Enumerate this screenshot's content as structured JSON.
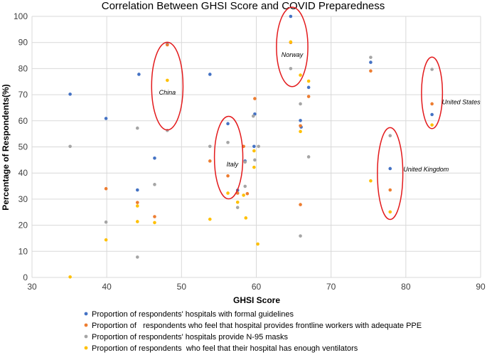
{
  "chart_data": {
    "type": "scatter",
    "title": "Correlation Between GHSI Score and COVID Preparedness",
    "xlabel": "GHSI Score",
    "ylabel": "Percentage of Respondents(%)",
    "xlim": [
      30,
      90
    ],
    "ylim": [
      0,
      100
    ],
    "xticks": [
      30,
      40,
      50,
      60,
      70,
      80,
      90
    ],
    "yticks": [
      0,
      10,
      20,
      30,
      40,
      50,
      60,
      70,
      80,
      90,
      100
    ],
    "grid": true,
    "series": [
      {
        "name": "Proportion of respondents' hospitals with formal guidelines",
        "color": "#4472C4",
        "points": [
          [
            35.1,
            70.2
          ],
          [
            39.9,
            60.9
          ],
          [
            44.1,
            33.5
          ],
          [
            44.3,
            77.8
          ],
          [
            46.4,
            45.7
          ],
          [
            48.1,
            89.3
          ],
          [
            53.8,
            77.8
          ],
          [
            56.2,
            58.9
          ],
          [
            57.5,
            33.4
          ],
          [
            58.5,
            44.6
          ],
          [
            59.7,
            50.2
          ],
          [
            59.8,
            62.6
          ],
          [
            64.6,
            100
          ],
          [
            65.9,
            60.1
          ],
          [
            66,
            57.6
          ],
          [
            67,
            72.8
          ],
          [
            75.3,
            82.4
          ],
          [
            77.9,
            41.7
          ],
          [
            83.5,
            62.4
          ]
        ]
      },
      {
        "name": "Proportion of   respondents who feel that hospital provides frontline workers with adequate PPE",
        "color": "#ED7D31",
        "points": [
          [
            39.9,
            34
          ],
          [
            44.1,
            28.7
          ],
          [
            46.4,
            23.3
          ],
          [
            48.1,
            89.1
          ],
          [
            53.8,
            44.6
          ],
          [
            56.2,
            38.9
          ],
          [
            57.5,
            32.3
          ],
          [
            58.3,
            50.2
          ],
          [
            58.8,
            32.1
          ],
          [
            59.8,
            68.5
          ],
          [
            64.6,
            90
          ],
          [
            65.9,
            58.1
          ],
          [
            65.9,
            27.9
          ],
          [
            67,
            69.3
          ],
          [
            75.3,
            79.1
          ],
          [
            77.9,
            33.5
          ],
          [
            83.5,
            66.5
          ]
        ]
      },
      {
        "name": "Proportion of respondents' hospitals provide N-95 masks",
        "color": "#A5A5A5",
        "points": [
          [
            35.1,
            50.2
          ],
          [
            39.9,
            21.2
          ],
          [
            44.1,
            57.2
          ],
          [
            44.1,
            7.8
          ],
          [
            46.4,
            35.6
          ],
          [
            48.1,
            56.3
          ],
          [
            53.8,
            50.2
          ],
          [
            56.2,
            51.7
          ],
          [
            57.5,
            26.8
          ],
          [
            58.5,
            44.2
          ],
          [
            58.5,
            34.9
          ],
          [
            59.6,
            61.8
          ],
          [
            59.8,
            45
          ],
          [
            60.3,
            50.2
          ],
          [
            64.6,
            80
          ],
          [
            65.9,
            66.5
          ],
          [
            65.9,
            15.9
          ],
          [
            67,
            46.2
          ],
          [
            75.3,
            84.3
          ],
          [
            77.9,
            54.3
          ],
          [
            83.5,
            79.7
          ]
        ]
      },
      {
        "name": "Proportion of respondents  who feel that their hospital has enough ventilators",
        "color": "#FFC000",
        "points": [
          [
            35.1,
            0.2
          ],
          [
            39.9,
            14.4
          ],
          [
            44.1,
            27.4
          ],
          [
            44.1,
            21.4
          ],
          [
            46.4,
            21
          ],
          [
            48.1,
            75.5
          ],
          [
            53.8,
            22.3
          ],
          [
            56.2,
            32.3
          ],
          [
            57.5,
            28.8
          ],
          [
            58.3,
            31.5
          ],
          [
            58.6,
            22.8
          ],
          [
            59.7,
            48.5
          ],
          [
            59.7,
            42.2
          ],
          [
            60.2,
            12.8
          ],
          [
            64.6,
            90.2
          ],
          [
            65.9,
            77.5
          ],
          [
            65.9,
            55.9
          ],
          [
            67,
            75.2
          ],
          [
            75.3,
            37
          ],
          [
            77.9,
            25.1
          ],
          [
            83.5,
            58.4
          ]
        ]
      }
    ],
    "annotations": [
      {
        "label": "China",
        "center": [
          48.1,
          73.3
        ],
        "rx": 2.1,
        "ry": 16.8,
        "label_at": [
          48.1,
          70.9
        ]
      },
      {
        "label": "Norway",
        "center": [
          64.8,
          88.3
        ],
        "rx": 2.1,
        "ry": 15.2,
        "label_at": [
          64.8,
          85.3
        ]
      },
      {
        "label": "Italy",
        "center": [
          56.3,
          45.9
        ],
        "rx": 1.9,
        "ry": 15.8,
        "label_at": [
          56.8,
          43.3
        ]
      },
      {
        "label": "United Kingdom",
        "center": [
          77.9,
          39.8
        ],
        "rx": 1.7,
        "ry": 17.6,
        "label_at": [
          82.7,
          41.4
        ]
      },
      {
        "label": "United States",
        "center": [
          83.5,
          70.7
        ],
        "rx": 1.4,
        "ry": 13.7,
        "label_at": [
          87.4,
          67.2
        ]
      }
    ]
  }
}
